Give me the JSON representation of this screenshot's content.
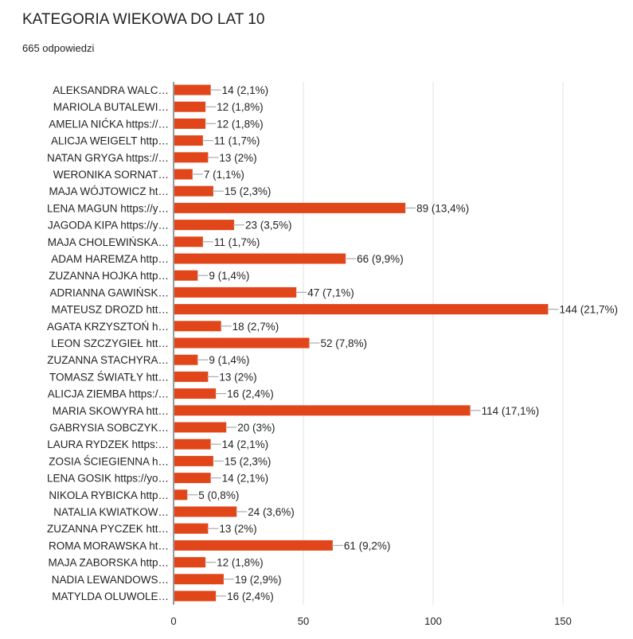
{
  "chart_data": {
    "type": "bar",
    "orientation": "horizontal",
    "title": "KATEGORIA WIEKOWA DO LAT 10",
    "subtitle": "665 odpowiedzi",
    "xlabel": "",
    "ylabel": "",
    "xlim": [
      0,
      150
    ],
    "xticks": [
      "0",
      "50",
      "100",
      "150"
    ],
    "grid": true,
    "bar_color": "#e1461a",
    "categories": [
      "ALEKSANDRA WALC…",
      "MARIOLA BUTALEWI…",
      "AMELIA NIĆKA https://…",
      "ALICJA WEIGELT http…",
      "NATAN GRYGA https://…",
      "WERONIKA SORNAT…",
      "MAJA WÓJTOWICZ ht…",
      "LENA MAGUN https://y…",
      "JAGODA KIPA https://y…",
      "MAJA CHOLEWIŃSKA…",
      "ADAM HAREMZA http…",
      "ZUZANNA HOJKA http…",
      "ADRIANNA GAWIŃSK…",
      "MATEUSZ DROZD htt…",
      "AGATA KRZYSZTOŃ h…",
      "LEON SZCZYGIEŁ htt…",
      "ZUZANNA STACHYRA…",
      "TOMASZ ŚWIATŁY htt…",
      "ALICJA ZIEMBA https:/…",
      "MARIA SKOWYRA htt…",
      "GABRYSIA SOBCZYK…",
      "LAURA RYDZEK https:…",
      "ZOSIA ŚCIEGIENNA h…",
      "LENA GOSIK https://yo…",
      "NIKOLA RYBICKA http…",
      "NATALIA KWIATKOW…",
      "ZUZANNA PYCZEK htt…",
      "ROMA MORAWSKA ht…",
      "MAJA ZABORSKA http…",
      "NADIA LEWANDOWS…",
      "MATYLDA OLUWOLE…"
    ],
    "values": [
      14,
      12,
      12,
      11,
      13,
      7,
      15,
      89,
      23,
      11,
      66,
      9,
      47,
      144,
      18,
      52,
      9,
      13,
      16,
      114,
      20,
      14,
      15,
      14,
      5,
      24,
      13,
      61,
      12,
      19,
      16
    ],
    "labels": [
      "14 (2,1%)",
      "12 (1,8%)",
      "12 (1,8%)",
      "11 (1,7%)",
      "13 (2%)",
      "7 (1,1%)",
      "15 (2,3%)",
      "89 (13,4%)",
      "23 (3,5%)",
      "11 (1,7%)",
      "66 (9,9%)",
      "9 (1,4%)",
      "47 (7,1%)",
      "144 (21,7%)",
      "18 (2,7%)",
      "52 (7,8%)",
      "9 (1,4%)",
      "13 (2%)",
      "16 (2,4%)",
      "114 (17,1%)",
      "20 (3%)",
      "14 (2,1%)",
      "15 (2,3%)",
      "14 (2,1%)",
      "5 (0,8%)",
      "24 (3,6%)",
      "13 (2%)",
      "61 (9,2%)",
      "12 (1,8%)",
      "19 (2,9%)",
      "16 (2,4%)"
    ]
  }
}
